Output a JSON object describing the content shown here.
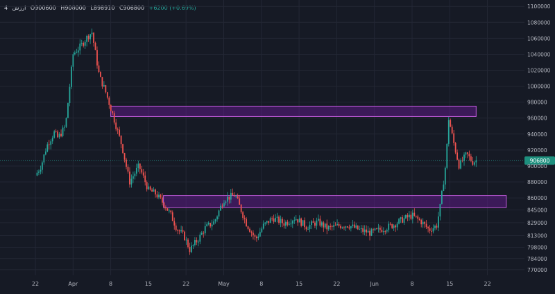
{
  "legend": {
    "interval": "4",
    "symbol": "ارزش",
    "open": "O900600",
    "high": "H908000",
    "low": "L898910",
    "close": "C906800",
    "change": "+6200 (+0.69%)"
  },
  "colors": {
    "background": "#161a25",
    "up": "#26a69a",
    "down": "#ef5350",
    "zone_fill": "#6a1b9a",
    "zone_border": "#c45ce0",
    "grid": "#232735",
    "axis_text": "#b2b5be",
    "price_tag": "#1e8f7e"
  },
  "chart_data": {
    "type": "candlestick",
    "title": "",
    "xlabel": "",
    "ylabel": "",
    "ylim": [
      763000,
      1108000
    ],
    "y_ticks": [
      770000,
      784000,
      798000,
      813000,
      829000,
      845000,
      860000,
      880000,
      900000,
      920000,
      940000,
      960000,
      980000,
      1000000,
      1020000,
      1040000,
      1060000,
      1080000,
      1100000
    ],
    "x_ticks": [
      "22",
      "Apr",
      "8",
      "15",
      "22",
      "May",
      "8",
      "15",
      "22",
      "Jun",
      "8",
      "15",
      "22"
    ],
    "last_price": 906800,
    "last_price_label": "906800",
    "zones": [
      {
        "from_tick": 2,
        "to_tick": 11.7,
        "low": 962000,
        "high": 975000
      },
      {
        "from_tick": 3.4,
        "to_tick": 12.5,
        "low": 848000,
        "high": 863000
      }
    ],
    "price_path": [
      [
        0,
        888000
      ],
      [
        0.15,
        900000
      ],
      [
        0.3,
        925000
      ],
      [
        0.5,
        942000
      ],
      [
        0.6,
        935000
      ],
      [
        0.8,
        950000
      ],
      [
        1.0,
        1040000
      ],
      [
        1.2,
        1050000
      ],
      [
        1.35,
        1060000
      ],
      [
        1.5,
        1068000
      ],
      [
        1.7,
        1012000
      ],
      [
        1.85,
        995000
      ],
      [
        2.05,
        965000
      ],
      [
        2.3,
        925000
      ],
      [
        2.5,
        880000
      ],
      [
        2.75,
        900000
      ],
      [
        3.0,
        870000
      ],
      [
        3.2,
        865000
      ],
      [
        3.45,
        850000
      ],
      [
        3.6,
        838000
      ],
      [
        3.75,
        822000
      ],
      [
        3.95,
        812000
      ],
      [
        4.1,
        795000
      ],
      [
        4.35,
        810000
      ],
      [
        4.5,
        822000
      ],
      [
        4.75,
        830000
      ],
      [
        5.0,
        858000
      ],
      [
        5.3,
        864000
      ],
      [
        5.6,
        828000
      ],
      [
        5.85,
        808000
      ],
      [
        6.05,
        825000
      ],
      [
        6.3,
        835000
      ],
      [
        6.6,
        828000
      ],
      [
        6.9,
        835000
      ],
      [
        7.2,
        824000
      ],
      [
        7.5,
        830000
      ],
      [
        7.75,
        822000
      ],
      [
        8.05,
        825000
      ],
      [
        8.3,
        826000
      ],
      [
        8.6,
        820000
      ],
      [
        8.9,
        816000
      ],
      [
        9.2,
        821000
      ],
      [
        9.5,
        826000
      ],
      [
        9.75,
        833000
      ],
      [
        10.0,
        838000
      ],
      [
        10.25,
        830000
      ],
      [
        10.45,
        820000
      ],
      [
        10.65,
        825000
      ],
      [
        10.75,
        850000
      ],
      [
        10.9,
        905000
      ],
      [
        10.97,
        960000
      ],
      [
        11.1,
        930000
      ],
      [
        11.25,
        900000
      ],
      [
        11.45,
        915000
      ],
      [
        11.6,
        905000
      ],
      [
        11.7,
        906800
      ]
    ]
  }
}
